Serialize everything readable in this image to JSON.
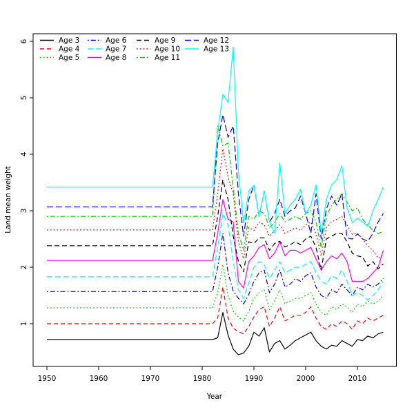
{
  "chart_data": {
    "type": "line",
    "title": "",
    "xlabel": "Year",
    "ylabel": "Land mean weight",
    "x_ticks": [
      1950,
      1960,
      1970,
      1980,
      1990,
      2000,
      2010
    ],
    "y_ticks": [
      1,
      2,
      3,
      4,
      5,
      6
    ],
    "xlim": [
      1947.3,
      2017.6
    ],
    "ylim": [
      0.24,
      6.13
    ],
    "grid": false,
    "legend_position": "top-left-inside",
    "years_start": 1950,
    "years_end": 2015,
    "flat_until_year": 1982,
    "post_start_year": 1983,
    "series": [
      {
        "name": "Age 3",
        "color": "#000000",
        "dash": "",
        "flat_value": 0.72,
        "post_values": [
          0.75,
          1.2,
          0.8,
          0.55,
          0.45,
          0.48,
          0.6,
          0.85,
          0.78,
          0.93,
          0.5,
          0.65,
          0.7,
          0.55,
          0.62,
          0.7,
          0.75,
          0.8,
          0.85,
          0.7,
          0.6,
          0.55,
          0.62,
          0.6,
          0.7,
          0.65,
          0.6,
          0.72,
          0.7,
          0.78,
          0.75,
          0.82,
          0.85
        ]
      },
      {
        "name": "Age 4",
        "color": "#ff0000",
        "dash": "6,4",
        "flat_value": 1.0,
        "post_values": [
          1.1,
          1.65,
          1.1,
          0.92,
          0.86,
          0.82,
          0.95,
          1.12,
          1.25,
          1.3,
          0.95,
          1.1,
          1.3,
          1.05,
          1.1,
          1.15,
          1.15,
          1.2,
          1.3,
          1.1,
          0.95,
          0.9,
          1.0,
          0.95,
          1.05,
          1.0,
          0.9,
          1.05,
          1.0,
          1.1,
          1.05,
          1.1,
          1.15
        ]
      },
      {
        "name": "Age 5",
        "color": "#00cc00",
        "dash": "1.8,3",
        "flat_value": 1.28,
        "post_values": [
          1.55,
          2.05,
          1.5,
          1.22,
          1.12,
          1.05,
          1.22,
          1.45,
          1.55,
          1.6,
          1.25,
          1.4,
          1.6,
          1.35,
          1.4,
          1.45,
          1.45,
          1.5,
          1.55,
          1.35,
          1.2,
          1.15,
          1.3,
          1.25,
          1.35,
          1.3,
          1.2,
          1.35,
          1.3,
          1.4,
          1.35,
          1.4,
          1.5
        ]
      },
      {
        "name": "Age 6",
        "color": "#0000ff",
        "dash": "1.8,3,7,3",
        "flat_value": 1.57,
        "post_values": [
          2.0,
          2.6,
          1.9,
          1.58,
          1.45,
          1.35,
          1.52,
          1.75,
          1.9,
          1.95,
          1.55,
          1.7,
          1.95,
          1.65,
          1.7,
          1.8,
          1.75,
          1.85,
          1.9,
          1.65,
          1.5,
          1.45,
          1.6,
          1.55,
          1.7,
          1.6,
          1.5,
          1.65,
          1.6,
          1.7,
          1.65,
          1.7,
          1.8
        ]
      },
      {
        "name": "Age 7",
        "color": "#00ffff",
        "dash": "8,4",
        "flat_value": 1.83,
        "post_values": [
          2.35,
          2.95,
          2.75,
          2.1,
          1.6,
          1.45,
          1.72,
          2.0,
          2.1,
          2.05,
          1.8,
          1.95,
          2.1,
          1.9,
          1.95,
          2.0,
          2.0,
          2.05,
          2.1,
          1.9,
          1.75,
          1.7,
          1.85,
          1.8,
          1.95,
          1.75,
          1.5,
          1.55,
          1.5,
          1.42,
          1.5,
          1.6,
          1.75
        ]
      },
      {
        "name": "Age 8",
        "color": "#ff00ff",
        "dash": "",
        "flat_value": 2.12,
        "post_values": [
          2.6,
          3.2,
          2.85,
          2.8,
          1.75,
          1.63,
          2.1,
          2.2,
          2.35,
          2.4,
          2.15,
          2.25,
          2.45,
          2.2,
          2.3,
          2.3,
          2.25,
          2.3,
          2.35,
          2.15,
          1.95,
          2.1,
          2.2,
          2.15,
          2.25,
          2.1,
          1.75,
          1.75,
          1.75,
          1.8,
          1.9,
          2.0,
          2.3
        ]
      },
      {
        "name": "Age 9",
        "color": "#000000",
        "dash": "7,4",
        "flat_value": 2.38,
        "post_values": [
          2.9,
          3.55,
          3.2,
          2.55,
          2.1,
          1.92,
          2.45,
          2.42,
          2.52,
          2.52,
          2.3,
          2.42,
          2.46,
          2.36,
          2.4,
          2.45,
          2.4,
          2.5,
          2.55,
          2.35,
          1.95,
          2.5,
          2.55,
          2.6,
          2.6,
          2.45,
          2.25,
          2.2,
          2.18,
          2.02,
          2.1,
          1.97,
          2.06
        ]
      },
      {
        "name": "Age 10",
        "color": "#ff0000",
        "dash": "1.8,3",
        "flat_value": 2.66,
        "post_values": [
          3.3,
          4.1,
          3.6,
          3.3,
          2.45,
          2.15,
          2.7,
          2.65,
          2.8,
          2.75,
          2.55,
          2.65,
          2.75,
          2.6,
          2.65,
          2.7,
          2.65,
          2.75,
          2.8,
          2.6,
          2.2,
          2.7,
          2.8,
          2.85,
          2.9,
          2.75,
          2.58,
          2.6,
          2.5,
          2.38,
          2.3,
          2.16,
          2.22
        ]
      },
      {
        "name": "Age 11",
        "color": "#00cc00",
        "dash": "1.8,3,7,3",
        "flat_value": 2.9,
        "post_values": [
          4.5,
          4.15,
          4.2,
          3.4,
          2.6,
          2.3,
          2.9,
          2.85,
          3.0,
          2.95,
          2.7,
          2.8,
          2.95,
          2.8,
          2.85,
          2.9,
          2.85,
          2.95,
          3.0,
          2.8,
          2.35,
          2.9,
          3.1,
          3.2,
          3.3,
          3.15,
          3.0,
          3.05,
          2.85,
          2.75,
          2.65,
          2.6,
          2.63
        ]
      },
      {
        "name": "Age 12",
        "color": "#0000ff",
        "dash": "9,4",
        "flat_value": 3.07,
        "post_values": [
          4.2,
          4.7,
          4.3,
          4.5,
          3.3,
          2.55,
          3.2,
          3.45,
          2.9,
          3.35,
          2.8,
          2.95,
          3.2,
          2.9,
          3.0,
          3.05,
          3.26,
          2.95,
          2.6,
          3.3,
          2.5,
          3.03,
          3.26,
          3.1,
          3.3,
          2.52,
          2.5,
          2.59,
          2.5,
          2.46,
          2.6,
          2.8,
          2.95
        ]
      },
      {
        "name": "Age 13",
        "color": "#00ffff",
        "dash": "",
        "flat_value": 3.42,
        "post_values": [
          4.4,
          5.06,
          4.92,
          5.9,
          3.7,
          2.78,
          3.35,
          3.45,
          2.9,
          3.35,
          2.8,
          2.6,
          3.85,
          2.95,
          3.1,
          3.2,
          3.38,
          2.95,
          3.1,
          3.46,
          2.6,
          3.2,
          3.46,
          3.55,
          3.8,
          3.05,
          2.79,
          2.87,
          2.8,
          2.72,
          3.0,
          3.2,
          3.42
        ]
      }
    ]
  }
}
